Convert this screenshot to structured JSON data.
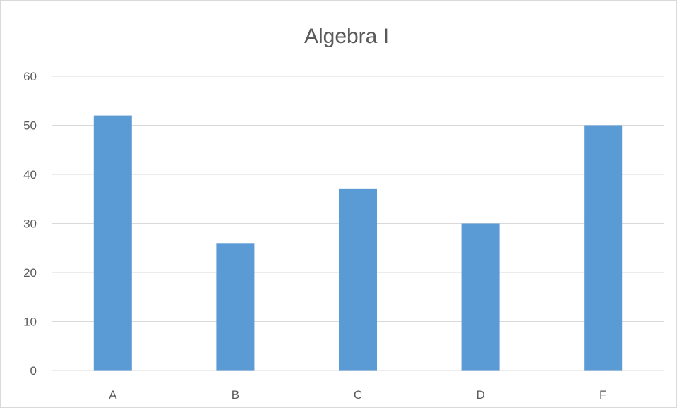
{
  "chart_data": {
    "type": "bar",
    "title": "Algebra I",
    "categories": [
      "A",
      "B",
      "C",
      "D",
      "F"
    ],
    "values": [
      52,
      26,
      37,
      30,
      50
    ],
    "xlabel": "",
    "ylabel": "",
    "ylim": [
      0,
      60
    ],
    "yticks": [
      0,
      10,
      20,
      30,
      40,
      50,
      60
    ],
    "grid": true,
    "legend": "none",
    "bar_color": "#5b9bd5",
    "grid_color": "#d9d9d9",
    "text_color": "#595959"
  }
}
